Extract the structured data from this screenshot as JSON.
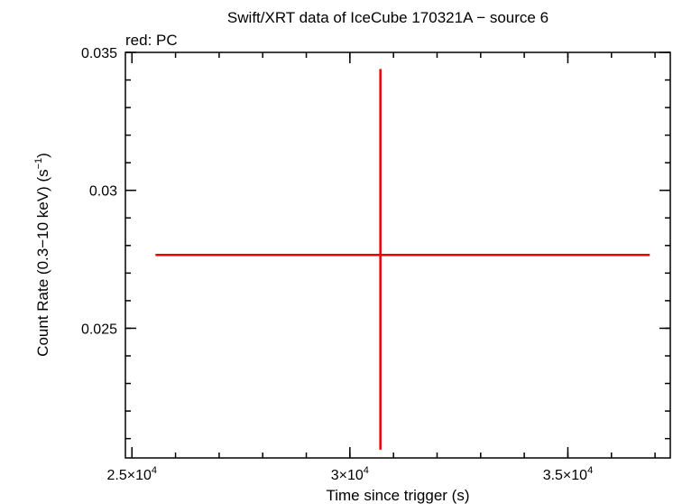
{
  "chart_data": {
    "type": "scatter",
    "title": "Swift/XRT data of IceCube 170321A − source 6",
    "subtitle": "red: PC",
    "xlabel": "Time since trigger (s)",
    "ylabel_main": "Count Rate (0.3−10 keV) (s",
    "ylabel_sup": "−1",
    "ylabel_close": ")",
    "xlim": [
      24850,
      37350
    ],
    "ylim": [
      0.0203,
      0.035
    ],
    "x_ticks": [
      {
        "value": 25000,
        "mantissa": "2.5×10",
        "exp": "4"
      },
      {
        "value": 30000,
        "mantissa": "3×10",
        "exp": "4"
      },
      {
        "value": 35000,
        "mantissa": "3.5×10",
        "exp": "4"
      }
    ],
    "x_minor_step": 1000,
    "y_ticks": [
      {
        "value": 0.025,
        "label": "0.025"
      },
      {
        "value": 0.03,
        "label": "0.03"
      },
      {
        "value": 0.035,
        "label": "0.035"
      }
    ],
    "y_minor_step": 0.001,
    "series": [
      {
        "color": "#ee0000",
        "points": [
          {
            "x": 30700,
            "x_err_neg": 5160,
            "x_err_pos": 6180,
            "y": 0.02766,
            "y_err_neg": 0.00706,
            "y_err_pos": 0.00674
          }
        ]
      }
    ]
  }
}
